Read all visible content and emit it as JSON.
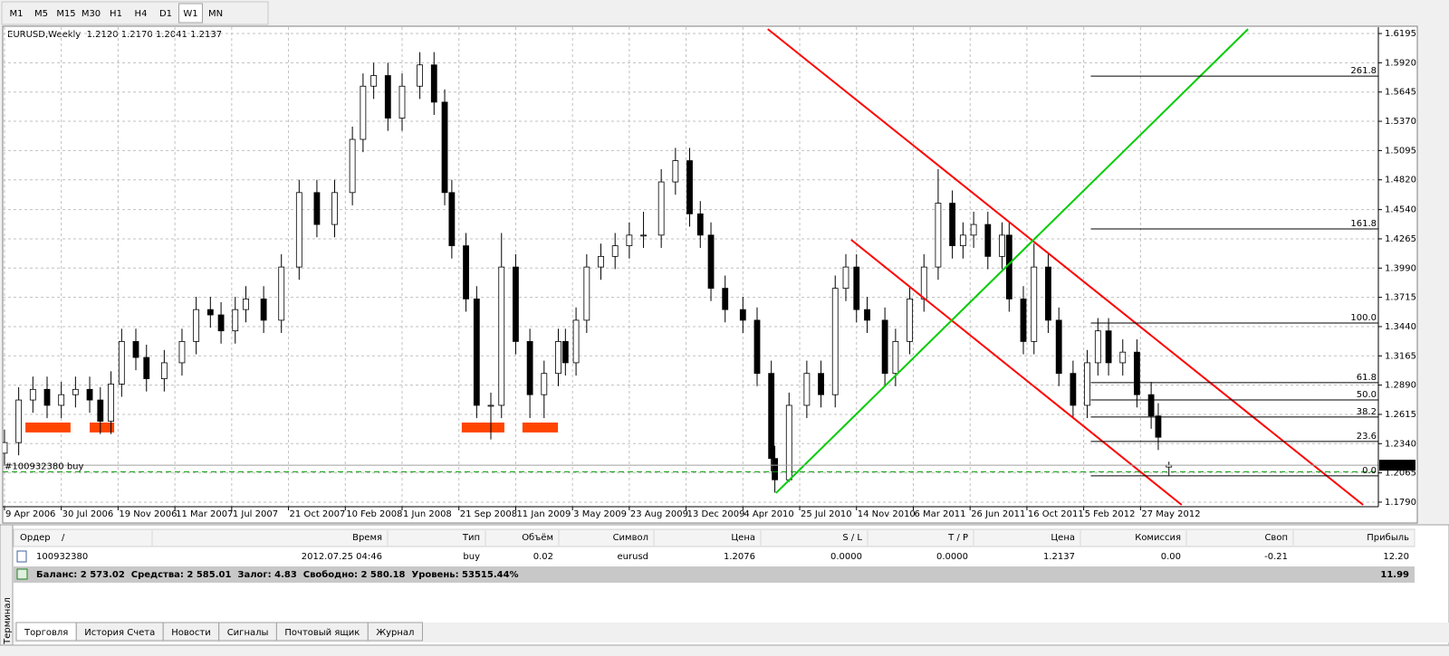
{
  "toolbar": {
    "timeframes": [
      "M1",
      "M5",
      "M15",
      "M30",
      "H1",
      "H4",
      "D1",
      "W1",
      "MN"
    ],
    "active": 7
  },
  "chart_data": {
    "type": "candlestick",
    "title": "EURUSD,Weekly  1.2120 1.2170 1.2041 1.2137",
    "x": [
      0,
      4,
      8,
      12,
      16,
      20,
      24,
      27,
      30,
      33,
      37,
      40,
      45,
      50,
      54,
      58,
      61,
      65,
      68,
      73,
      78,
      83,
      88,
      93,
      98,
      101,
      104,
      108,
      112,
      117,
      121,
      124,
      126,
      130,
      133,
      137,
      140,
      144,
      148,
      152,
      156,
      158,
      161,
      164,
      168,
      172,
      176,
      180,
      185,
      189,
      193,
      196,
      199,
      203,
      208,
      212,
      216,
      217,
      221,
      226,
      230,
      234,
      237,
      240,
      243,
      248,
      251,
      255,
      259,
      263,
      267,
      270,
      273,
      277,
      281,
      283,
      287,
      290,
      294,
      297,
      301,
      305,
      308,
      311,
      315,
      319,
      323,
      325,
      328
    ],
    "open": [
      1.225,
      1.235,
      1.275,
      1.285,
      1.27,
      1.28,
      1.285,
      1.275,
      1.255,
      1.29,
      1.33,
      1.315,
      1.295,
      1.31,
      1.33,
      1.36,
      1.355,
      1.34,
      1.36,
      1.37,
      1.35,
      1.4,
      1.47,
      1.44,
      1.47,
      1.52,
      1.57,
      1.58,
      1.54,
      1.57,
      1.59,
      1.555,
      1.47,
      1.42,
      1.37,
      1.27,
      1.27,
      1.4,
      1.33,
      1.28,
      1.3,
      1.33,
      1.31,
      1.35,
      1.4,
      1.41,
      1.42,
      1.43,
      1.43,
      1.48,
      1.5,
      1.45,
      1.43,
      1.38,
      1.36,
      1.35,
      1.3,
      1.22,
      1.2,
      1.27,
      1.3,
      1.28,
      1.38,
      1.4,
      1.36,
      1.35,
      1.3,
      1.33,
      1.37,
      1.4,
      1.46,
      1.42,
      1.43,
      1.44,
      1.41,
      1.43,
      1.37,
      1.33,
      1.4,
      1.35,
      1.3,
      1.27,
      1.31,
      1.34,
      1.31,
      1.32,
      1.28,
      1.26,
      1.212
    ],
    "high": [
      1.247,
      1.287,
      1.297,
      1.297,
      1.292,
      1.297,
      1.297,
      1.287,
      1.302,
      1.342,
      1.342,
      1.327,
      1.322,
      1.342,
      1.372,
      1.372,
      1.367,
      1.372,
      1.382,
      1.382,
      1.412,
      1.482,
      1.482,
      1.482,
      1.532,
      1.582,
      1.592,
      1.592,
      1.582,
      1.602,
      1.602,
      1.567,
      1.482,
      1.432,
      1.382,
      1.282,
      1.432,
      1.412,
      1.342,
      1.312,
      1.342,
      1.342,
      1.362,
      1.412,
      1.422,
      1.432,
      1.442,
      1.452,
      1.492,
      1.512,
      1.512,
      1.462,
      1.442,
      1.392,
      1.372,
      1.362,
      1.312,
      1.232,
      1.282,
      1.312,
      1.312,
      1.392,
      1.412,
      1.412,
      1.372,
      1.362,
      1.342,
      1.382,
      1.412,
      1.492,
      1.472,
      1.442,
      1.452,
      1.452,
      1.442,
      1.442,
      1.382,
      1.422,
      1.412,
      1.362,
      1.312,
      1.322,
      1.352,
      1.352,
      1.332,
      1.332,
      1.292,
      1.272,
      1.217
    ],
    "low": [
      1.213,
      1.223,
      1.263,
      1.258,
      1.258,
      1.268,
      1.263,
      1.243,
      1.243,
      1.278,
      1.303,
      1.283,
      1.283,
      1.298,
      1.318,
      1.343,
      1.328,
      1.328,
      1.348,
      1.338,
      1.338,
      1.388,
      1.428,
      1.428,
      1.458,
      1.508,
      1.558,
      1.528,
      1.528,
      1.558,
      1.543,
      1.458,
      1.408,
      1.358,
      1.258,
      1.238,
      1.258,
      1.318,
      1.258,
      1.258,
      1.288,
      1.298,
      1.298,
      1.338,
      1.388,
      1.398,
      1.408,
      1.418,
      1.418,
      1.468,
      1.438,
      1.418,
      1.368,
      1.348,
      1.338,
      1.288,
      1.208,
      1.188,
      1.198,
      1.258,
      1.268,
      1.268,
      1.368,
      1.348,
      1.338,
      1.288,
      1.288,
      1.318,
      1.358,
      1.388,
      1.408,
      1.408,
      1.418,
      1.398,
      1.398,
      1.358,
      1.318,
      1.318,
      1.338,
      1.288,
      1.258,
      1.258,
      1.298,
      1.298,
      1.298,
      1.268,
      1.248,
      1.228,
      1.2041
    ],
    "close": [
      1.235,
      1.275,
      1.285,
      1.27,
      1.28,
      1.285,
      1.275,
      1.255,
      1.29,
      1.33,
      1.315,
      1.295,
      1.31,
      1.33,
      1.36,
      1.355,
      1.34,
      1.36,
      1.37,
      1.35,
      1.4,
      1.47,
      1.44,
      1.47,
      1.52,
      1.57,
      1.58,
      1.54,
      1.57,
      1.59,
      1.555,
      1.47,
      1.42,
      1.37,
      1.27,
      1.27,
      1.4,
      1.33,
      1.28,
      1.3,
      1.33,
      1.31,
      1.35,
      1.4,
      1.41,
      1.42,
      1.43,
      1.43,
      1.48,
      1.5,
      1.45,
      1.43,
      1.38,
      1.36,
      1.35,
      1.3,
      1.22,
      1.2,
      1.27,
      1.3,
      1.28,
      1.38,
      1.4,
      1.36,
      1.35,
      1.3,
      1.33,
      1.37,
      1.4,
      1.46,
      1.42,
      1.43,
      1.44,
      1.41,
      1.43,
      1.37,
      1.33,
      1.4,
      1.35,
      1.3,
      1.27,
      1.31,
      1.34,
      1.31,
      1.32,
      1.28,
      1.26,
      1.24,
      1.2137
    ],
    "up_color": "#ffffff",
    "down_color": "#000000",
    "xlim": [
      -0.5,
      387
    ],
    "xticks": [
      {
        "value": 0,
        "label": "9 Apr 2006"
      },
      {
        "value": 16,
        "label": "30 Jul 2006"
      },
      {
        "value": 32,
        "label": "19 Nov 2006"
      },
      {
        "value": 48,
        "label": "11 Mar 2007"
      },
      {
        "value": 64,
        "label": "1 Jul 2007"
      },
      {
        "value": 80,
        "label": "21 Oct 2007"
      },
      {
        "value": 96,
        "label": "10 Feb 2008"
      },
      {
        "value": 112,
        "label": "1 Jun 2008"
      },
      {
        "value": 128,
        "label": "21 Sep 2008"
      },
      {
        "value": 144,
        "label": "11 Jan 2009"
      },
      {
        "value": 160,
        "label": "3 May 2009"
      },
      {
        "value": 176,
        "label": "23 Aug 2009"
      },
      {
        "value": 192,
        "label": "13 Dec 2009"
      },
      {
        "value": 208,
        "label": "4 Apr 2010"
      },
      {
        "value": 224,
        "label": "25 Jul 2010"
      },
      {
        "value": 240,
        "label": "14 Nov 2010"
      },
      {
        "value": 256,
        "label": "6 Mar 2011"
      },
      {
        "value": 272,
        "label": "26 Jun 2011"
      },
      {
        "value": 288,
        "label": "16 Oct 2011"
      },
      {
        "value": 304,
        "label": "5 Feb 2012"
      },
      {
        "value": 320,
        "label": "27 May 2012"
      }
    ],
    "ylim": [
      1.1747,
      1.6255
    ],
    "yticks": [
      1.6195,
      {
        "value": 1.592,
        "label": "1.5920"
      },
      1.5645,
      {
        "value": 1.537,
        "label": "1.5370"
      },
      1.5095,
      {
        "value": 1.482,
        "label": "1.4820"
      },
      {
        "value": 1.454,
        "label": "1.4540"
      },
      1.4265,
      {
        "value": 1.399,
        "label": "1.3990"
      },
      1.3715,
      {
        "value": 1.344,
        "label": "1.3440"
      },
      1.3165,
      {
        "value": 1.289,
        "label": "1.2890"
      },
      1.2615,
      {
        "value": 1.234,
        "label": "1.2340"
      },
      1.2065,
      {
        "value": 1.179,
        "label": "1.1790"
      }
    ],
    "grid": true,
    "fibo": {
      "color": "#000000",
      "x_start": 306,
      "levels": [
        {
          "label": "261.8",
          "price": 1.5795
        },
        {
          "label": "161.8",
          "price": 1.4358
        },
        {
          "label": "100.0",
          "price": 1.3474
        },
        {
          "label": "61.8",
          "price": 1.2913
        },
        {
          "label": "50.0",
          "price": 1.2751
        },
        {
          "label": "38.2",
          "price": 1.259
        },
        {
          "label": "23.6",
          "price": 1.236
        },
        {
          "label": "0.0",
          "price": 1.2037
        }
      ]
    },
    "trendlines": [
      {
        "color": "#ff0000",
        "x": [
          215,
          382.7
        ],
        "y": [
          1.6237,
          1.1764
        ]
      },
      {
        "color": "#ff0000",
        "x": [
          238.5,
          331.6
        ],
        "y": [
          1.4256,
          1.1764
        ]
      },
      {
        "color": "#00cc00",
        "x": [
          217.3,
          350.3
        ],
        "y": [
          1.1875,
          1.6237
        ]
      }
    ],
    "zones": {
      "color": "#ff4500",
      "items": [
        {
          "x": [
            5.9,
            18.6
          ],
          "y": [
            1.2445,
            1.2538
          ]
        },
        {
          "x": [
            24,
            30.9
          ],
          "y": [
            1.2445,
            1.2538
          ]
        },
        {
          "x": [
            128.8,
            140.8
          ],
          "y": [
            1.2445,
            1.2538
          ]
        },
        {
          "x": [
            145.9,
            155.9
          ],
          "y": [
            1.2445,
            1.2538
          ]
        }
      ]
    },
    "order_line": {
      "label": "#100932380 buy",
      "price": 1.2076,
      "color": "#009900"
    },
    "bid": 1.2137
  },
  "terminal": {
    "side_label": "Терминал",
    "columns": [
      "Ордер",
      "/",
      "Время",
      "Тип",
      "Объём",
      "Символ",
      "Цена",
      "S / L",
      "T / P",
      "Цена",
      "Комиссия",
      "Своп",
      "Прибыль"
    ],
    "rows": [
      [
        "100932380",
        "2012.07.25 04:46",
        "buy",
        "0.02",
        "eurusd",
        "1.2076",
        "0.0000",
        "0.0000",
        "1.2137",
        "0.00",
        "-0.21",
        "12.20"
      ]
    ],
    "summary": {
      "text": "Баланс: 2 573.02  Средства: 2 585.01  Залог: 4.83  Свободно: 2 580.18  Уровень: 53515.44%",
      "profit": "11.99"
    },
    "tabs": [
      "Торговля",
      "История Счета",
      "Новости",
      "Сигналы",
      "Почтовый ящик",
      "Журнал"
    ],
    "active_tab": 0
  }
}
